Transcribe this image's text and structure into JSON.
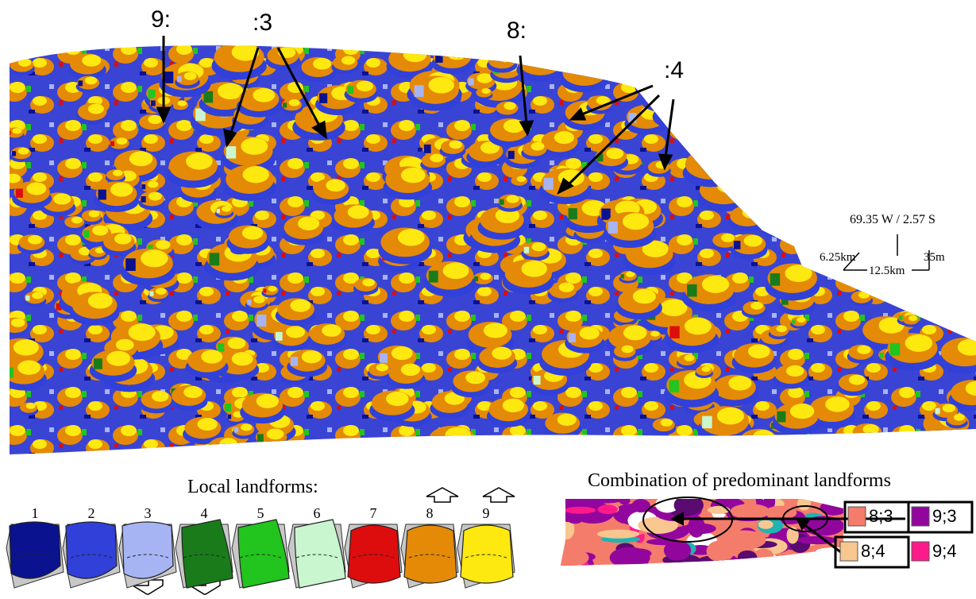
{
  "callouts": {
    "c9": "9:",
    "c3": ":3",
    "c8": "8:",
    "c4": ":4"
  },
  "scale": {
    "coords": "69.35 W / 2.57 S",
    "len_a": "6.25km",
    "len_b": "12.5km",
    "height": "35m"
  },
  "legend": {
    "title": "Local landforms:",
    "items": [
      {
        "num": "1",
        "color": "#0b128f"
      },
      {
        "num": "2",
        "color": "#3140d8"
      },
      {
        "num": "3",
        "color": "#a7b4f4"
      },
      {
        "num": "4",
        "color": "#1a7b1a"
      },
      {
        "num": "5",
        "color": "#22c41e"
      },
      {
        "num": "6",
        "color": "#c9f6cf"
      },
      {
        "num": "7",
        "color": "#dd0d0d"
      },
      {
        "num": "8",
        "color": "#e48a06"
      },
      {
        "num": "9",
        "color": "#fde810"
      }
    ]
  },
  "combination": {
    "title": "Combination of predominant landforms",
    "items": [
      {
        "label": "8;3",
        "color": "#f47c6b"
      },
      {
        "label": "9;3",
        "color": "#93069e"
      },
      {
        "label": "8;4",
        "color": "#f8c68f"
      },
      {
        "label": "9;4",
        "color": "#ff1a8c"
      }
    ]
  }
}
